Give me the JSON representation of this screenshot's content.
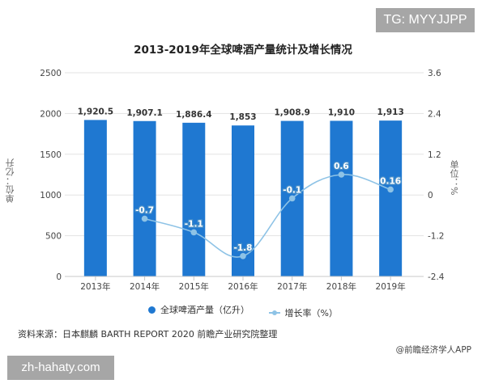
{
  "watermarks": {
    "tg_badge": "TG: MYYJJPP",
    "site_badge": "zh-hahaty.com"
  },
  "chart_data": {
    "type": "bar+line",
    "title": "2013-2019年全球啤酒产量统计及增长情况",
    "categories": [
      "2013年",
      "2014年",
      "2015年",
      "2016年",
      "2017年",
      "2018年",
      "2019年"
    ],
    "series": [
      {
        "name": "全球啤酒产量（亿升）",
        "type": "bar",
        "axis": "left",
        "color": "#1f78d1",
        "values": [
          1920.5,
          1907.1,
          1886.4,
          1853,
          1908.9,
          1910,
          1913
        ],
        "labels": [
          "1,920.5",
          "1,907.1",
          "1,886.4",
          "1,853",
          "1,908.9",
          "1,910",
          "1,913"
        ]
      },
      {
        "name": "增长率（%）",
        "type": "line",
        "axis": "right",
        "color": "#8ec3e6",
        "values": [
          null,
          -0.7,
          -1.1,
          -1.8,
          -0.1,
          0.6,
          0.16
        ],
        "labels": [
          "",
          "-0.7",
          "-1.1",
          "-1.8",
          "-0.1",
          "0.6",
          "0.16"
        ]
      }
    ],
    "ylabel": "单位：亿升",
    "y2label": "单位：%",
    "ylim": [
      0,
      2500
    ],
    "y2lim": [
      -2.4,
      3.6
    ],
    "yticks": [
      "2500",
      "2000",
      "1500",
      "1000",
      "500",
      "0"
    ],
    "y2ticks": [
      "3.6",
      "2.4",
      "1.2",
      "0",
      "-1.2",
      "-2.4"
    ],
    "grid": true,
    "legend_position": "bottom"
  },
  "footer": {
    "source": "资料来源：日本麒麟 BARTH REPORT 2020 前瞻产业研究院整理",
    "credit": "@前瞻经济学人APP"
  }
}
